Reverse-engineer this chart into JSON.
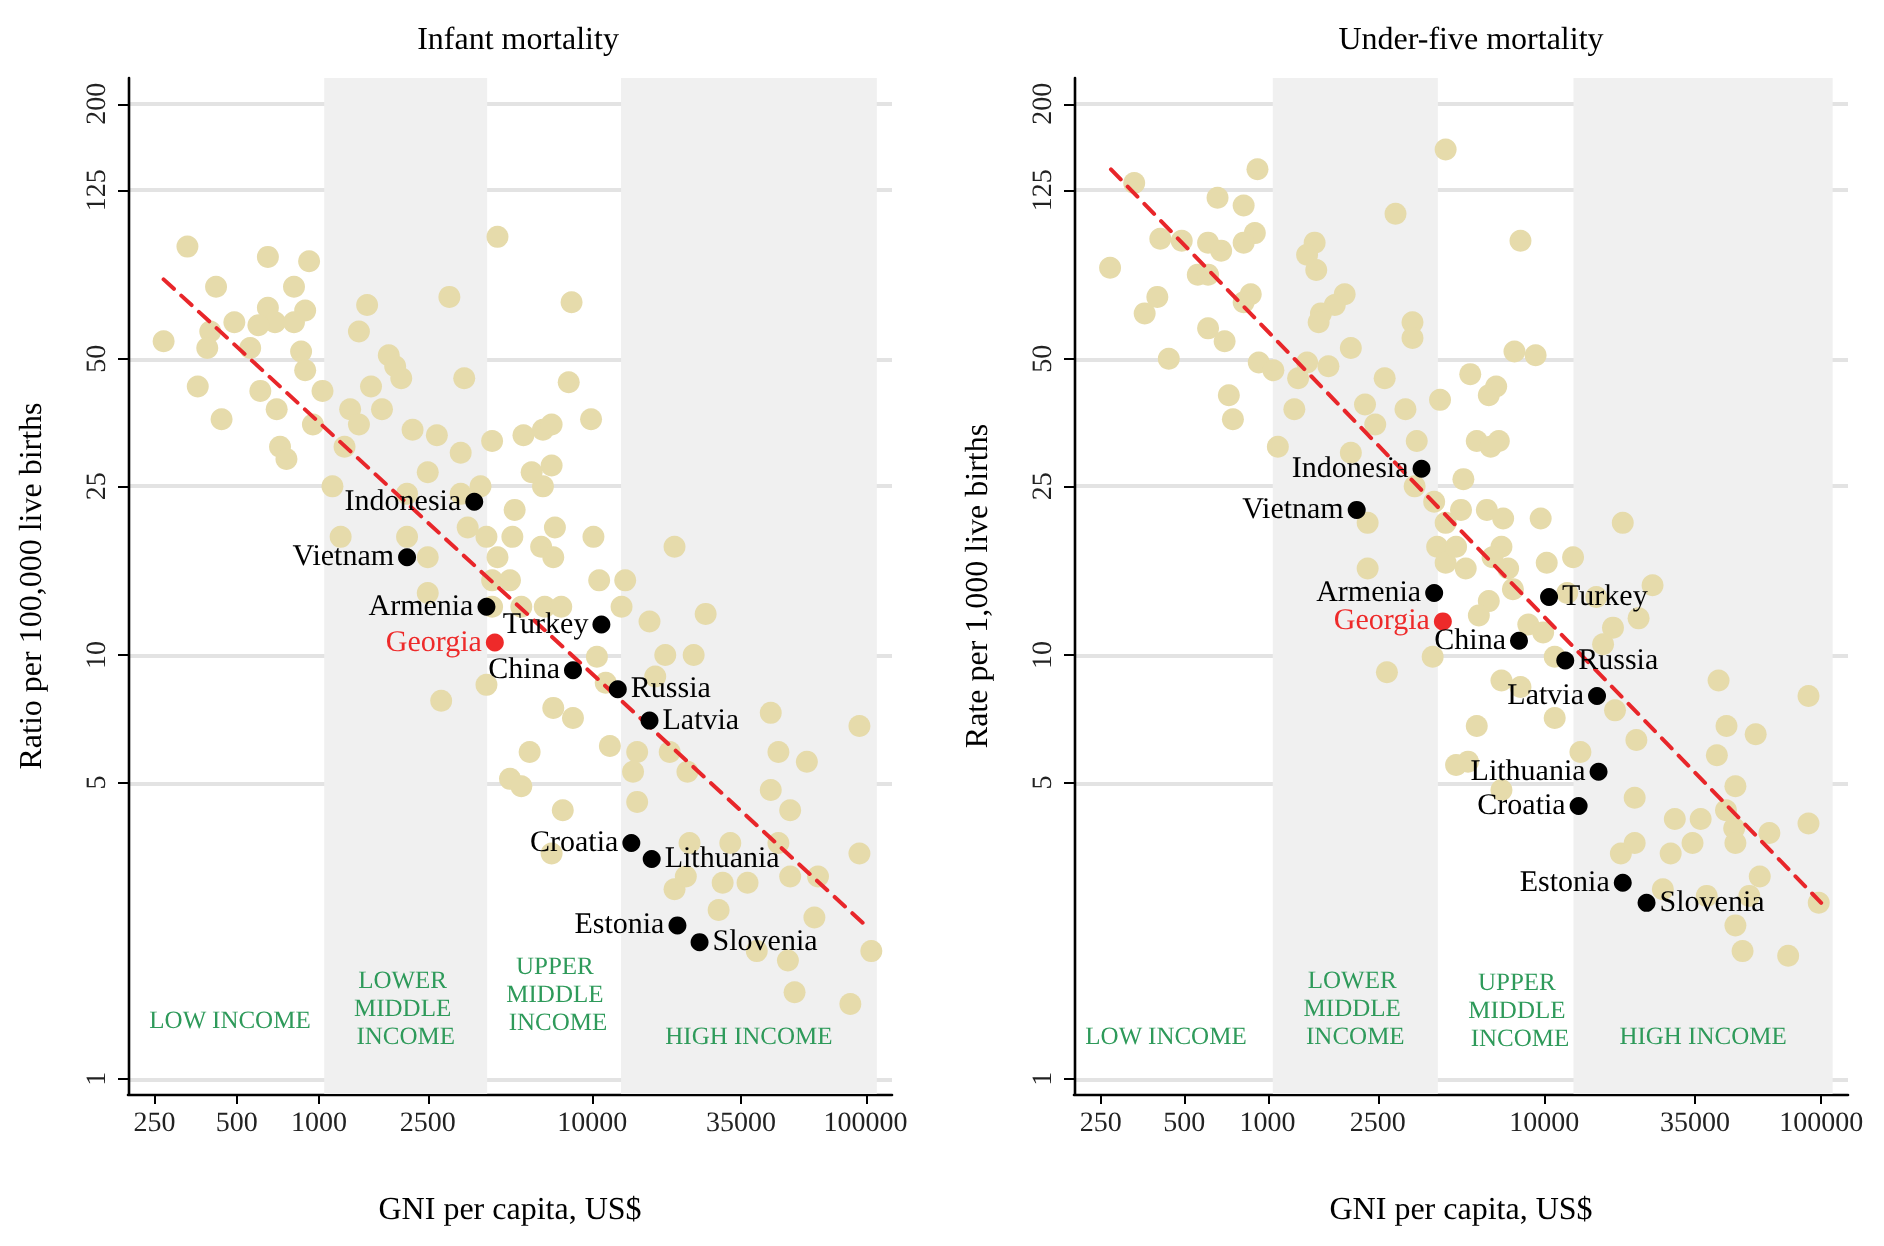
{
  "chart_data": [
    {
      "type": "scatter",
      "title": "Infant mortality",
      "xlabel": "GNI per capita, US$",
      "ylabel": "Ratio per 100,000 live births",
      "log": "xy",
      "grid": "y",
      "marker": "circle",
      "xlim": [
        200,
        125000
      ],
      "ylim": [
        0.92,
        230
      ],
      "xticks": [
        250,
        500,
        1000,
        2500,
        10000,
        35000,
        100000
      ],
      "yticks": [
        1,
        5,
        10,
        25,
        50,
        125,
        200
      ],
      "annotations": [
        "LOW INCOME",
        "UPPER MIDDLE INCOME"
      ],
      "bands": [
        {
          "axis": "x",
          "from": 1045,
          "to": 4125,
          "label": "LOWER MIDDLE INCOME",
          "color": "#f0f0f0"
        },
        {
          "axis": "x",
          "from": 12745,
          "to": 110000,
          "label": "HIGH INCOME",
          "color": "#f0f0f0"
        }
      ],
      "series": [
        {
          "color": "#e6dbab",
          "x": [
            330,
            650,
            920,
            420,
            810,
            1500,
            3000,
            650,
            890,
            690,
            490,
            600,
            810,
            400,
            270,
            390,
            560,
            860,
            1400,
            1800,
            1900,
            2000,
            3400,
            360,
            610,
            890,
            1030,
            1550,
            1300,
            700,
            1700,
            440,
            950,
            1400,
            2200,
            2700,
            4300,
            720,
            760,
            1240,
            3300,
            2500,
            1120,
            2100,
            3900,
            3300,
            3500,
            1200,
            2100,
            2500,
            4100,
            4500,
            2500,
            4300,
            4300,
            4100,
            2800,
            4500,
            8400,
            8200,
            9900,
            5600,
            6600,
            7100,
            6000,
            6600,
            7100,
            5200,
            5100,
            6500,
            7300,
            10100,
            7200,
            20000,
            5000,
            5500,
            6700,
            7700,
            10600,
            13200,
            12800,
            16200,
            26000,
            10400,
            11200,
            18500,
            23500,
            17000,
            7200,
            8500,
            11600,
            14600,
            19200,
            14100,
            22300,
            45000,
            48000,
            61000,
            95000,
            5900,
            5000,
            5500,
            14600,
            45000,
            53000,
            7800,
            7100,
            22700,
            32000,
            48000,
            95000,
            20000,
            22000,
            30000,
            37000,
            53000,
            67000,
            29000,
            65000,
            40000,
            52000,
            105000,
            55000,
            88000
          ],
          "values": [
            92,
            87,
            85,
            74,
            74,
            67,
            70,
            66,
            65,
            61,
            61,
            60,
            61,
            58,
            55,
            53,
            53,
            52,
            58,
            51,
            48,
            45,
            45,
            43,
            42,
            47,
            42,
            43,
            38,
            38,
            38,
            36,
            35,
            35,
            34,
            33,
            32,
            31,
            29,
            31,
            30,
            27,
            25,
            24,
            25,
            24,
            20,
            19,
            19,
            17,
            19,
            17,
            14,
            15,
            13,
            8.5,
            7.8,
            97,
            68,
            44,
            36,
            33,
            34,
            35,
            27,
            25,
            28,
            22,
            19,
            18,
            20,
            19,
            17,
            18,
            15,
            13,
            13,
            13,
            15,
            15,
            13,
            12,
            12.5,
            9.9,
            8.6,
            10,
            10,
            8.9,
            7.5,
            7.1,
            6.1,
            5.9,
            5.9,
            5.3,
            5.3,
            7.3,
            5.9,
            5.6,
            6.8,
            5.9,
            5.1,
            4.9,
            4.5,
            4.8,
            4.3,
            4.3,
            3.4,
            3.6,
            3.6,
            3.6,
            3.4,
            2.8,
            3.0,
            2.9,
            2.9,
            3.0,
            3.0,
            2.5,
            2.4,
            2.0,
            1.9,
            2.0,
            1.6,
            1.5
          ]
        },
        {
          "name": "Indonesia",
          "color": "#000000",
          "x": [
            3700
          ],
          "values": [
            23
          ]
        },
        {
          "name": "Vietnam",
          "color": "#000000",
          "x": [
            2100
          ],
          "values": [
            17
          ]
        },
        {
          "name": "Armenia",
          "color": "#000000",
          "x": [
            4100
          ],
          "values": [
            13
          ]
        },
        {
          "name": "Georgia",
          "color": "#ee2a2a",
          "x": [
            4400
          ],
          "values": [
            10.7
          ]
        },
        {
          "name": "Turkey",
          "color": "#000000",
          "x": [
            10800
          ],
          "values": [
            11.8
          ]
        },
        {
          "name": "China",
          "color": "#000000",
          "x": [
            8500
          ],
          "values": [
            9.2
          ]
        },
        {
          "name": "Russia",
          "color": "#000000",
          "x": [
            12400
          ],
          "values": [
            8.3
          ]
        },
        {
          "name": "Latvia",
          "color": "#000000",
          "x": [
            16200
          ],
          "values": [
            7.0
          ]
        },
        {
          "name": "Croatia",
          "color": "#000000",
          "x": [
            13900
          ],
          "values": [
            3.6
          ]
        },
        {
          "name": "Lithuania",
          "color": "#000000",
          "x": [
            16500
          ],
          "values": [
            3.3
          ]
        },
        {
          "name": "Estonia",
          "color": "#000000",
          "x": [
            20500
          ],
          "values": [
            2.3
          ]
        },
        {
          "name": "Slovenia",
          "color": "#000000",
          "x": [
            24700
          ],
          "values": [
            2.1
          ]
        },
        {
          "type": "line",
          "color": "#e8262a",
          "line_style": "dashed",
          "marker": "none",
          "x": [
            270,
            100000
          ],
          "values": [
            77,
            2.3
          ]
        }
      ]
    },
    {
      "type": "scatter",
      "title": "Under-five mortality",
      "xlabel": "GNI per capita, US$",
      "ylabel": "Rate per 1,000 live births",
      "log": "xy",
      "grid": "y",
      "marker": "circle",
      "xlim": [
        200,
        125000
      ],
      "ylim": [
        0.92,
        230
      ],
      "xticks": [
        250,
        500,
        1000,
        2500,
        10000,
        35000,
        100000
      ],
      "yticks": [
        1,
        5,
        10,
        25,
        50,
        125,
        200
      ],
      "annotations": [
        "LOW INCOME",
        "UPPER MIDDLE INCOME"
      ],
      "bands": [
        {
          "axis": "x",
          "from": 1045,
          "to": 4125,
          "label": "LOWER MIDDLE INCOME",
          "color": "#f0f0f0"
        },
        {
          "axis": "x",
          "from": 12745,
          "to": 110000,
          "label": "HIGH INCOME",
          "color": "#f0f0f0"
        }
      ],
      "series": [
        {
          "color": "#e6dbab",
          "x": [
            4400,
            330,
            920,
            660,
            820,
            2900,
            410,
            490,
            900,
            610,
            680,
            820,
            1480,
            1390,
            1500,
            270,
            560,
            610,
            870,
            820,
            400,
            360,
            1900,
            1750,
            1560,
            1530,
            3340,
            3340,
            610,
            700,
            2000,
            440,
            930,
            1050,
            1390,
            1290,
            1660,
            2650,
            725,
            750,
            1250,
            2250,
            3150,
            4200,
            2450,
            1090,
            3460,
            2000,
            3400,
            4000,
            4400,
            2300,
            2300,
            4100,
            4400,
            2700,
            3950,
            8200,
            7800,
            9300,
            5400,
            6700,
            6300,
            5700,
            6400,
            6850,
            5100,
            5000,
            6200,
            7100,
            9700,
            19200,
            7000,
            4800,
            5200,
            6500,
            7400,
            10200,
            12700,
            12100,
            15400,
            24600,
            21900,
            17700,
            6300,
            5800,
            7700,
            8750,
            9900,
            10900,
            16300,
            7000,
            8200,
            18000,
            10900,
            42600,
            90000,
            5700,
            21500,
            45500,
            58000,
            13500,
            42000,
            49000,
            4800,
            5300,
            7000,
            21200,
            29600,
            36700,
            45300,
            48500,
            65000,
            90000,
            18900,
            21200,
            28600,
            34300,
            49000,
            60000,
            38600,
            49000,
            55000,
            52000,
            76000,
            98000,
            26800
          ],
          "values": [
            156,
            130,
            140,
            120,
            115,
            110,
            96,
            95,
            99,
            94,
            90,
            94,
            94,
            88,
            81,
            82,
            79,
            79,
            71,
            68,
            70,
            64,
            71,
            67,
            64,
            61,
            61,
            56,
            59,
            55,
            53,
            50,
            49,
            47,
            49,
            45,
            48,
            45,
            41,
            36,
            38,
            39,
            38,
            40,
            35,
            31,
            32,
            30,
            25,
            23,
            20.5,
            20.5,
            16,
            18,
            16.5,
            9.1,
            9.9,
            95,
            52,
            51,
            46,
            43,
            41,
            32,
            31,
            32,
            26,
            22,
            22,
            21,
            21,
            20.5,
            18,
            18,
            16,
            17,
            16,
            16.5,
            17,
            14,
            13.7,
            14.6,
            12.2,
            11.6,
            13.4,
            12.4,
            14.3,
            11.8,
            11.3,
            9.9,
            10.6,
            8.7,
            8.4,
            7.4,
            7.1,
            8.7,
            8.0,
            6.8,
            6.3,
            6.8,
            6.5,
            5.9,
            5.8,
            4.9,
            5.5,
            5.6,
            4.8,
            4.6,
            4.1,
            4.1,
            4.3,
            3.9,
            3.8,
            4.0,
            3.4,
            3.6,
            3.4,
            3.6,
            3.6,
            3.0,
            2.7,
            2.3,
            2.7,
            2.0,
            1.95,
            2.6,
            2.8
          ]
        },
        {
          "name": "Indonesia",
          "color": "#000000",
          "x": [
            3600
          ],
          "values": [
            27.5
          ]
        },
        {
          "name": "Vietnam",
          "color": "#000000",
          "x": [
            2100
          ],
          "values": [
            22
          ]
        },
        {
          "name": "Armenia",
          "color": "#000000",
          "x": [
            4000
          ],
          "values": [
            14
          ]
        },
        {
          "name": "Georgia",
          "color": "#ee2a2a",
          "x": [
            4300
          ],
          "values": [
            12
          ]
        },
        {
          "name": "Turkey",
          "color": "#000000",
          "x": [
            10400
          ],
          "values": [
            13.7
          ]
        },
        {
          "name": "China",
          "color": "#000000",
          "x": [
            8100
          ],
          "values": [
            10.8
          ]
        },
        {
          "name": "Russia",
          "color": "#000000",
          "x": [
            11900
          ],
          "values": [
            9.7
          ]
        },
        {
          "name": "Latvia",
          "color": "#000000",
          "x": [
            15500
          ],
          "values": [
            8.0
          ]
        },
        {
          "name": "Croatia",
          "color": "#000000",
          "x": [
            13300
          ],
          "values": [
            4.4
          ]
        },
        {
          "name": "Lithuania",
          "color": "#000000",
          "x": [
            15700
          ],
          "values": [
            5.3
          ]
        },
        {
          "name": "Estonia",
          "color": "#000000",
          "x": [
            19200
          ],
          "values": [
            2.9
          ]
        },
        {
          "name": "Slovenia",
          "color": "#000000",
          "x": [
            23400
          ],
          "values": [
            2.6
          ]
        },
        {
          "type": "line",
          "color": "#e8262a",
          "line_style": "dashed",
          "marker": "none",
          "x": [
            272,
            100000
          ],
          "values": [
            140,
            2.6
          ]
        }
      ]
    }
  ]
}
